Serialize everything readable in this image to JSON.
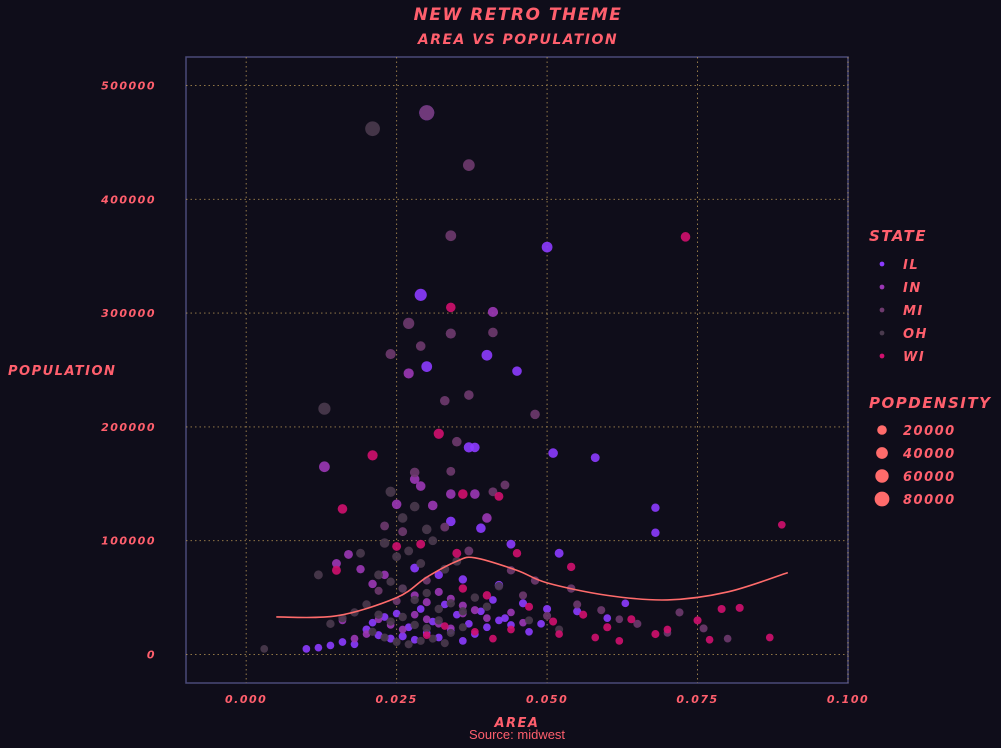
{
  "chart_data": {
    "type": "scatter",
    "title": "NEW RETRO THEME",
    "subtitle": "AREA VS POPULATION",
    "xlabel": "AREA",
    "ylabel": "POPULATION",
    "caption": "Source: midwest",
    "xlim": [
      -0.01,
      0.1
    ],
    "ylim": [
      -25000,
      525000
    ],
    "x_ticks": [
      0.0,
      0.025,
      0.05,
      0.075,
      0.1
    ],
    "x_tick_labels": [
      "0.000",
      "0.025",
      "0.050",
      "0.075",
      "0.100"
    ],
    "y_ticks": [
      0,
      100000,
      200000,
      300000,
      400000,
      500000
    ],
    "y_tick_labels": [
      "0",
      "100000",
      "200000",
      "300000",
      "400000",
      "500000"
    ],
    "grid": true,
    "legend_state": {
      "title": "STATE",
      "entries": [
        {
          "label": "IL",
          "color": "#8c3bff"
        },
        {
          "label": "IN",
          "color": "#9b37b5"
        },
        {
          "label": "MI",
          "color": "#6e3a6e"
        },
        {
          "label": "OH",
          "color": "#4a3a4e"
        },
        {
          "label": "WI",
          "color": "#d0106e"
        }
      ]
    },
    "legend_size": {
      "title": "POPDENSITY",
      "entries": [
        {
          "label": "20000",
          "value": 20000
        },
        {
          "label": "40000",
          "value": 40000
        },
        {
          "label": "60000",
          "value": 60000
        },
        {
          "label": "80000",
          "value": 80000
        }
      ]
    },
    "smooth": {
      "color": "#ff6b6b",
      "x": [
        0.005,
        0.015,
        0.025,
        0.03,
        0.035,
        0.038,
        0.045,
        0.05,
        0.06,
        0.07,
        0.08,
        0.09
      ],
      "y": [
        33000,
        34000,
        50000,
        68000,
        82000,
        85000,
        74000,
        63000,
        52000,
        48000,
        55000,
        72000
      ]
    },
    "series": [
      {
        "name": "IL",
        "color": "#8c3bff",
        "points": [
          [
            0.03,
            476000,
            84000
          ],
          [
            0.05,
            358000,
            30000
          ],
          [
            0.029,
            316000,
            45000
          ],
          [
            0.03,
            253000,
            30000
          ],
          [
            0.04,
            263000,
            30000
          ],
          [
            0.045,
            249000,
            20000
          ],
          [
            0.037,
            182000,
            25000
          ],
          [
            0.038,
            182000,
            20000
          ],
          [
            0.051,
            177000,
            20000
          ],
          [
            0.058,
            173000,
            15000
          ],
          [
            0.068,
            129000,
            12000
          ],
          [
            0.068,
            107000,
            12000
          ],
          [
            0.034,
            117000,
            20000
          ],
          [
            0.039,
            111000,
            20000
          ],
          [
            0.044,
            97000,
            15000
          ],
          [
            0.052,
            89000,
            15000
          ],
          [
            0.028,
            76000,
            15000
          ],
          [
            0.032,
            70000,
            12000
          ],
          [
            0.036,
            66000,
            12000
          ],
          [
            0.042,
            61000,
            12000
          ],
          [
            0.046,
            45000,
            10000
          ],
          [
            0.05,
            40000,
            10000
          ],
          [
            0.055,
            38000,
            10000
          ],
          [
            0.06,
            32000,
            8000
          ],
          [
            0.063,
            45000,
            8000
          ],
          [
            0.02,
            22000,
            10000
          ],
          [
            0.022,
            17000,
            10000
          ],
          [
            0.024,
            14000,
            10000
          ],
          [
            0.026,
            16000,
            10000
          ],
          [
            0.028,
            13000,
            8000
          ],
          [
            0.03,
            19000,
            8000
          ],
          [
            0.032,
            15000,
            8000
          ],
          [
            0.034,
            21000,
            8000
          ],
          [
            0.036,
            12000,
            8000
          ],
          [
            0.038,
            18000,
            8000
          ],
          [
            0.04,
            24000,
            8000
          ],
          [
            0.042,
            30000,
            8000
          ],
          [
            0.044,
            26000,
            8000
          ],
          [
            0.047,
            20000,
            8000
          ],
          [
            0.049,
            27000,
            8000
          ],
          [
            0.016,
            11000,
            8000
          ],
          [
            0.018,
            9000,
            8000
          ],
          [
            0.012,
            6000,
            8000
          ],
          [
            0.01,
            5000,
            8000
          ],
          [
            0.014,
            8000,
            8000
          ],
          [
            0.021,
            28000,
            8000
          ],
          [
            0.023,
            33000,
            8000
          ],
          [
            0.025,
            36000,
            8000
          ],
          [
            0.027,
            24000,
            8000
          ],
          [
            0.029,
            40000,
            8000
          ],
          [
            0.031,
            29000,
            8000
          ],
          [
            0.033,
            44000,
            8000
          ],
          [
            0.035,
            35000,
            8000
          ],
          [
            0.037,
            27000,
            8000
          ],
          [
            0.039,
            38000,
            8000
          ],
          [
            0.041,
            48000,
            8000
          ],
          [
            0.043,
            32000,
            8000
          ]
        ]
      },
      {
        "name": "IN",
        "color": "#9b37b5",
        "points": [
          [
            0.013,
            165000,
            30000
          ],
          [
            0.041,
            301000,
            25000
          ],
          [
            0.027,
            247000,
            25000
          ],
          [
            0.028,
            154000,
            20000
          ],
          [
            0.029,
            148000,
            20000
          ],
          [
            0.025,
            132000,
            20000
          ],
          [
            0.031,
            131000,
            20000
          ],
          [
            0.034,
            141000,
            20000
          ],
          [
            0.038,
            141000,
            20000
          ],
          [
            0.04,
            120000,
            20000
          ],
          [
            0.017,
            88000,
            15000
          ],
          [
            0.015,
            80000,
            15000
          ],
          [
            0.019,
            75000,
            12000
          ],
          [
            0.021,
            62000,
            12000
          ],
          [
            0.023,
            70000,
            12000
          ],
          [
            0.026,
            58000,
            10000
          ],
          [
            0.028,
            52000,
            10000
          ],
          [
            0.03,
            46000,
            10000
          ],
          [
            0.032,
            55000,
            10000
          ],
          [
            0.034,
            49000,
            10000
          ],
          [
            0.036,
            43000,
            10000
          ],
          [
            0.038,
            39000,
            10000
          ],
          [
            0.022,
            31000,
            8000
          ],
          [
            0.024,
            26000,
            8000
          ],
          [
            0.026,
            22000,
            8000
          ],
          [
            0.028,
            35000,
            8000
          ],
          [
            0.03,
            31000,
            8000
          ],
          [
            0.032,
            27000,
            8000
          ],
          [
            0.034,
            23000,
            8000
          ],
          [
            0.036,
            36000,
            8000
          ],
          [
            0.02,
            18000,
            8000
          ],
          [
            0.018,
            14000,
            8000
          ],
          [
            0.016,
            30000,
            8000
          ],
          [
            0.04,
            32000,
            8000
          ],
          [
            0.044,
            37000,
            8000
          ],
          [
            0.046,
            28000,
            8000
          ]
        ]
      },
      {
        "name": "MI",
        "color": "#6e3a6e",
        "points": [
          [
            0.03,
            476000,
            84000
          ],
          [
            0.037,
            430000,
            40000
          ],
          [
            0.034,
            368000,
            30000
          ],
          [
            0.027,
            291000,
            35000
          ],
          [
            0.034,
            282000,
            25000
          ],
          [
            0.024,
            264000,
            25000
          ],
          [
            0.029,
            271000,
            20000
          ],
          [
            0.041,
            283000,
            20000
          ],
          [
            0.033,
            223000,
            20000
          ],
          [
            0.037,
            228000,
            20000
          ],
          [
            0.048,
            211000,
            20000
          ],
          [
            0.035,
            187000,
            20000
          ],
          [
            0.028,
            160000,
            20000
          ],
          [
            0.034,
            161000,
            15000
          ],
          [
            0.041,
            143000,
            15000
          ],
          [
            0.043,
            149000,
            15000
          ],
          [
            0.023,
            113000,
            15000
          ],
          [
            0.026,
            108000,
            15000
          ],
          [
            0.033,
            112000,
            15000
          ],
          [
            0.037,
            91000,
            15000
          ],
          [
            0.044,
            74000,
            12000
          ],
          [
            0.048,
            65000,
            12000
          ],
          [
            0.054,
            58000,
            12000
          ],
          [
            0.059,
            39000,
            10000
          ],
          [
            0.065,
            27000,
            10000
          ],
          [
            0.072,
            37000,
            10000
          ],
          [
            0.076,
            23000,
            10000
          ],
          [
            0.08,
            14000,
            8000
          ],
          [
            0.07,
            19000,
            8000
          ],
          [
            0.062,
            31000,
            8000
          ],
          [
            0.055,
            44000,
            10000
          ],
          [
            0.05,
            34000,
            10000
          ],
          [
            0.046,
            52000,
            10000
          ],
          [
            0.03,
            65000,
            10000
          ],
          [
            0.022,
            56000,
            10000
          ],
          [
            0.025,
            47000,
            10000
          ]
        ]
      },
      {
        "name": "OH",
        "color": "#4a3a4e",
        "points": [
          [
            0.021,
            462000,
            80000
          ],
          [
            0.013,
            216000,
            45000
          ],
          [
            0.024,
            143000,
            25000
          ],
          [
            0.026,
            120000,
            20000
          ],
          [
            0.028,
            130000,
            20000
          ],
          [
            0.03,
            110000,
            20000
          ],
          [
            0.023,
            98000,
            20000
          ],
          [
            0.025,
            86000,
            15000
          ],
          [
            0.027,
            91000,
            15000
          ],
          [
            0.029,
            80000,
            15000
          ],
          [
            0.031,
            100000,
            15000
          ],
          [
            0.033,
            75000,
            15000
          ],
          [
            0.035,
            82000,
            15000
          ],
          [
            0.022,
            70000,
            15000
          ],
          [
            0.024,
            64000,
            12000
          ],
          [
            0.026,
            58000,
            12000
          ],
          [
            0.028,
            48000,
            12000
          ],
          [
            0.03,
            54000,
            12000
          ],
          [
            0.032,
            40000,
            12000
          ],
          [
            0.034,
            45000,
            12000
          ],
          [
            0.036,
            38000,
            12000
          ],
          [
            0.038,
            50000,
            12000
          ],
          [
            0.04,
            42000,
            12000
          ],
          [
            0.02,
            44000,
            12000
          ],
          [
            0.018,
            37000,
            12000
          ],
          [
            0.016,
            32000,
            12000
          ],
          [
            0.014,
            27000,
            12000
          ],
          [
            0.022,
            35000,
            12000
          ],
          [
            0.024,
            29000,
            12000
          ],
          [
            0.026,
            33000,
            12000
          ],
          [
            0.028,
            26000,
            12000
          ],
          [
            0.03,
            23000,
            12000
          ],
          [
            0.032,
            30000,
            12000
          ],
          [
            0.034,
            19000,
            10000
          ],
          [
            0.036,
            24000,
            10000
          ],
          [
            0.021,
            20000,
            10000
          ],
          [
            0.023,
            15000,
            10000
          ],
          [
            0.025,
            11000,
            10000
          ],
          [
            0.027,
            9000,
            10000
          ],
          [
            0.029,
            12000,
            10000
          ],
          [
            0.031,
            14000,
            10000
          ],
          [
            0.033,
            10000,
            10000
          ],
          [
            0.012,
            70000,
            15000
          ],
          [
            0.019,
            89000,
            15000
          ],
          [
            0.042,
            60000,
            12000
          ],
          [
            0.003,
            5000,
            8000
          ],
          [
            0.047,
            30000,
            10000
          ],
          [
            0.052,
            22000,
            10000
          ]
        ]
      },
      {
        "name": "WI",
        "color": "#d0106e",
        "points": [
          [
            0.073,
            367000,
            20000
          ],
          [
            0.034,
            305000,
            20000
          ],
          [
            0.032,
            194000,
            25000
          ],
          [
            0.021,
            175000,
            25000
          ],
          [
            0.016,
            128000,
            20000
          ],
          [
            0.036,
            141000,
            20000
          ],
          [
            0.042,
            139000,
            15000
          ],
          [
            0.025,
            95000,
            15000
          ],
          [
            0.029,
            97000,
            15000
          ],
          [
            0.035,
            89000,
            15000
          ],
          [
            0.015,
            74000,
            15000
          ],
          [
            0.045,
            89000,
            12000
          ],
          [
            0.036,
            58000,
            12000
          ],
          [
            0.04,
            52000,
            12000
          ],
          [
            0.054,
            77000,
            12000
          ],
          [
            0.047,
            42000,
            10000
          ],
          [
            0.051,
            29000,
            10000
          ],
          [
            0.056,
            35000,
            10000
          ],
          [
            0.06,
            24000,
            10000
          ],
          [
            0.064,
            31000,
            10000
          ],
          [
            0.068,
            18000,
            10000
          ],
          [
            0.075,
            30000,
            10000
          ],
          [
            0.079,
            40000,
            10000
          ],
          [
            0.082,
            41000,
            10000
          ],
          [
            0.089,
            114000,
            8000
          ],
          [
            0.087,
            15000,
            8000
          ],
          [
            0.058,
            15000,
            8000
          ],
          [
            0.052,
            18000,
            8000
          ],
          [
            0.044,
            22000,
            8000
          ],
          [
            0.041,
            14000,
            8000
          ],
          [
            0.038,
            20000,
            8000
          ],
          [
            0.033,
            25000,
            8000
          ],
          [
            0.03,
            17000,
            8000
          ],
          [
            0.062,
            12000,
            8000
          ],
          [
            0.07,
            22000,
            8000
          ],
          [
            0.077,
            13000,
            8000
          ]
        ]
      }
    ]
  }
}
